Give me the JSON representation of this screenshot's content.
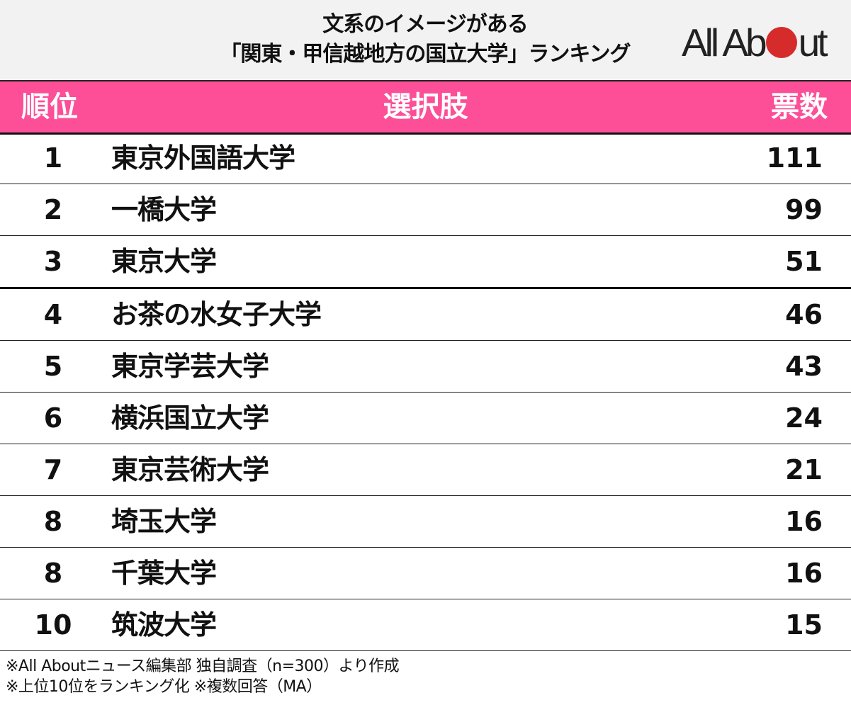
{
  "header": {
    "title_line1": "文系のイメージがある",
    "title_line2": "「関東・甲信越地方の国立大学」ランキング",
    "logo": {
      "text_before": "All Ab",
      "text_after": "ut",
      "dot_color": "#d62b2b"
    }
  },
  "table": {
    "header_color": "#fc4f98",
    "columns": {
      "rank": "順位",
      "choice": "選択肢",
      "votes": "票数"
    },
    "rows": [
      {
        "rank": "1",
        "name": "東京外国語大学",
        "votes": "111"
      },
      {
        "rank": "2",
        "name": "一橋大学",
        "votes": "99"
      },
      {
        "rank": "3",
        "name": "東京大学",
        "votes": "51"
      },
      {
        "rank": "4",
        "name": "お茶の水女子大学",
        "votes": "46"
      },
      {
        "rank": "5",
        "name": "東京学芸大学",
        "votes": "43"
      },
      {
        "rank": "6",
        "name": "横浜国立大学",
        "votes": "24"
      },
      {
        "rank": "7",
        "name": "東京芸術大学",
        "votes": "21"
      },
      {
        "rank": "8",
        "name": "埼玉大学",
        "votes": "16"
      },
      {
        "rank": "8",
        "name": "千葉大学",
        "votes": "16"
      },
      {
        "rank": "10",
        "name": "筑波大学",
        "votes": "15"
      }
    ]
  },
  "footer": {
    "note1": "※All Aboutニュース編集部 独自調査（n=300）より作成",
    "note2": "※上位10位をランキング化 ※複数回答（MA）"
  }
}
